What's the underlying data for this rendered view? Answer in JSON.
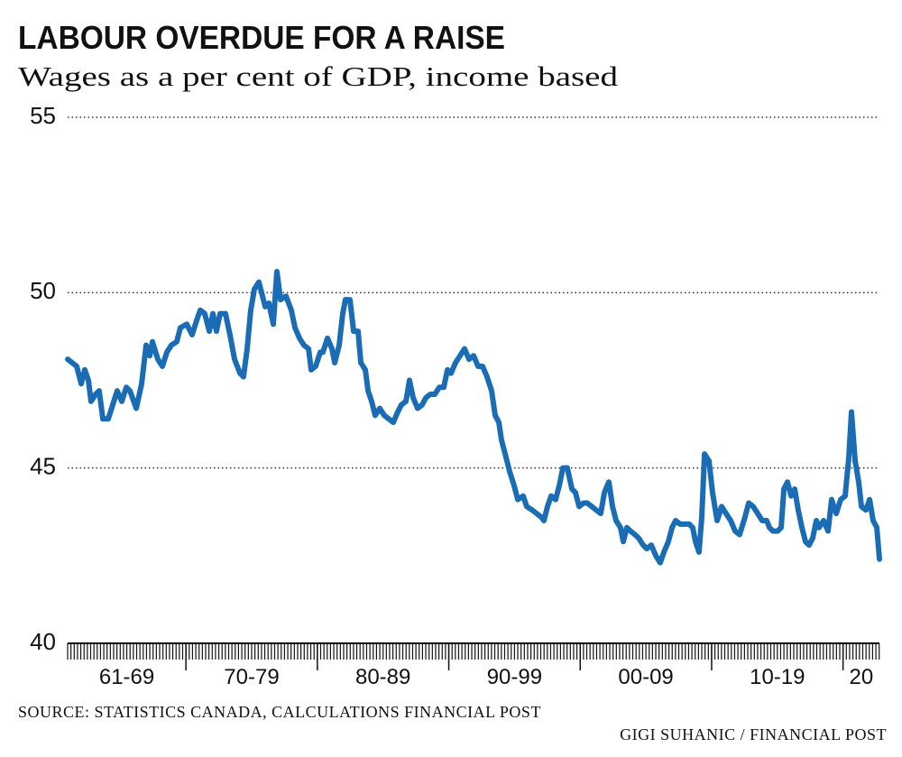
{
  "chart_data": {
    "type": "line",
    "title": "LABOUR OVERDUE FOR A RAISE",
    "subtitle": "Wages as a per cent of GDP, income based",
    "source": "SOURCE: STATISTICS CANADA, CALCULATIONS FINANCIAL POST",
    "credit": "GIGI SUHANIC / FINANCIAL POST",
    "ylim": [
      40,
      55
    ],
    "yticks": [
      40,
      45,
      50,
      55
    ],
    "grid": true,
    "xlim": [
      1961,
      2022.77
    ],
    "xticks": [
      1970,
      1980,
      1990,
      2000,
      2010,
      2020
    ],
    "minor_xtick_step": 0.25,
    "x_bands": [
      {
        "label": "61-69",
        "from": 1961,
        "to": 1970
      },
      {
        "label": "70-79",
        "from": 1970,
        "to": 1980
      },
      {
        "label": "80-89",
        "from": 1980,
        "to": 1990
      },
      {
        "label": "90-99",
        "from": 1990,
        "to": 2000
      },
      {
        "label": "00-09",
        "from": 2000,
        "to": 2010
      },
      {
        "label": "10-19",
        "from": 2010,
        "to": 2020
      },
      {
        "label": "20",
        "from": 2020,
        "to": 2022.77
      }
    ],
    "color": "#1a6db5",
    "x": [
      1961.0,
      1961.69,
      1962.03,
      1962.3,
      1962.58,
      1962.78,
      1963.13,
      1963.4,
      1963.68,
      1964.09,
      1964.43,
      1964.77,
      1965.12,
      1965.46,
      1965.74,
      1966.22,
      1966.63,
      1966.97,
      1967.25,
      1967.45,
      1967.86,
      1968.21,
      1968.55,
      1968.89,
      1969.3,
      1969.58,
      1970.06,
      1970.47,
      1970.81,
      1971.09,
      1971.43,
      1971.78,
      1972.05,
      1972.32,
      1972.6,
      1973.01,
      1973.35,
      1973.7,
      1974.11,
      1974.38,
      1974.66,
      1974.93,
      1975.21,
      1975.55,
      1975.76,
      1976.03,
      1976.31,
      1976.65,
      1976.92,
      1977.2,
      1977.61,
      1978.02,
      1978.3,
      1978.64,
      1978.98,
      1979.33,
      1979.53,
      1979.87,
      1980.22,
      1980.42,
      1980.77,
      1981.11,
      1981.32,
      1981.66,
      1981.93,
      1982.14,
      1982.48,
      1982.76,
      1983.1,
      1983.31,
      1983.65,
      1983.86,
      1984.13,
      1984.4,
      1984.75,
      1985.09,
      1985.43,
      1985.78,
      1986.12,
      1986.39,
      1986.74,
      1987.01,
      1987.29,
      1987.63,
      1987.97,
      1988.25,
      1988.59,
      1988.93,
      1989.28,
      1989.62,
      1989.9,
      1990.17,
      1990.51,
      1990.86,
      1991.2,
      1991.54,
      1991.89,
      1992.23,
      1992.57,
      1992.91,
      1993.26,
      1993.53,
      1993.81,
      1994.01,
      1994.29,
      1994.63,
      1994.97,
      1995.25,
      1995.66,
      1995.93,
      1996.35,
      1996.69,
      1997.03,
      1997.24,
      1997.51,
      1997.79,
      1998.13,
      1998.41,
      1998.68,
      1999.02,
      1999.37,
      1999.64,
      1999.92,
      2000.26,
      2000.53,
      2000.88,
      2001.22,
      2001.56,
      2001.84,
      2002.18,
      2002.46,
      2002.73,
      2003.07,
      2003.28,
      2003.55,
      2003.83,
      2004.17,
      2004.45,
      2004.79,
      2005.06,
      2005.41,
      2005.75,
      2006.09,
      2006.37,
      2006.71,
      2006.99,
      2007.26,
      2007.6,
      2008.01,
      2008.29,
      2008.56,
      2008.77,
      2009.04,
      2009.25,
      2009.46,
      2009.8,
      2010.07,
      2010.42,
      2010.76,
      2011.1,
      2011.45,
      2011.79,
      2012.13,
      2012.54,
      2012.82,
      2013.16,
      2013.51,
      2013.85,
      2014.19,
      2014.4,
      2014.67,
      2015.02,
      2015.29,
      2015.5,
      2015.77,
      2016.05,
      2016.32,
      2016.59,
      2016.87,
      2017.14,
      2017.42,
      2017.69,
      2017.97,
      2018.17,
      2018.52,
      2018.86,
      2019.13,
      2019.48,
      2019.82,
      2020.16,
      2020.44,
      2020.64,
      2020.92,
      2021.19,
      2021.4,
      2021.74,
      2022.02,
      2022.29,
      2022.57,
      2022.77
    ],
    "values": [
      48.1,
      47.9,
      47.4,
      47.8,
      47.5,
      46.9,
      47.1,
      47.2,
      46.4,
      46.4,
      46.8,
      47.2,
      46.9,
      47.3,
      47.2,
      46.7,
      47.4,
      48.5,
      48.2,
      48.6,
      48.1,
      47.9,
      48.3,
      48.5,
      48.6,
      49.0,
      49.1,
      48.8,
      49.2,
      49.5,
      49.4,
      48.9,
      49.4,
      48.9,
      49.4,
      49.4,
      48.8,
      48.1,
      47.7,
      47.6,
      48.4,
      49.5,
      50.1,
      50.3,
      50.0,
      49.6,
      49.7,
      49.1,
      50.6,
      49.8,
      49.9,
      49.5,
      49.0,
      48.7,
      48.5,
      48.4,
      47.8,
      47.9,
      48.3,
      48.3,
      48.7,
      48.4,
      48.0,
      48.5,
      49.4,
      49.8,
      49.8,
      48.9,
      48.9,
      48.0,
      47.8,
      47.2,
      46.9,
      46.5,
      46.7,
      46.5,
      46.4,
      46.3,
      46.6,
      46.8,
      46.9,
      47.5,
      47.0,
      46.7,
      46.8,
      47.0,
      47.1,
      47.1,
      47.3,
      47.3,
      47.8,
      47.7,
      48.0,
      48.2,
      48.4,
      48.1,
      48.2,
      47.9,
      47.9,
      47.6,
      47.2,
      46.5,
      46.3,
      45.8,
      45.4,
      44.9,
      44.5,
      44.1,
      44.2,
      43.9,
      43.8,
      43.7,
      43.6,
      43.5,
      43.9,
      44.2,
      44.1,
      44.5,
      45.0,
      45.0,
      44.4,
      44.3,
      43.9,
      44.0,
      44.0,
      43.9,
      43.8,
      43.7,
      44.3,
      44.6,
      43.9,
      43.5,
      43.3,
      42.9,
      43.3,
      43.2,
      43.1,
      43.0,
      42.8,
      42.7,
      42.8,
      42.5,
      42.3,
      42.6,
      42.9,
      43.3,
      43.5,
      43.4,
      43.4,
      43.4,
      43.3,
      42.9,
      42.6,
      43.6,
      45.4,
      45.2,
      44.3,
      43.5,
      43.9,
      43.7,
      43.5,
      43.2,
      43.1,
      43.6,
      44.0,
      43.9,
      43.7,
      43.5,
      43.5,
      43.3,
      43.2,
      43.2,
      43.3,
      44.4,
      44.6,
      44.2,
      44.4,
      43.8,
      43.3,
      42.9,
      42.8,
      43.0,
      43.5,
      43.3,
      43.5,
      43.2,
      44.1,
      43.7,
      44.1,
      44.2,
      45.3,
      46.6,
      45.2,
      44.6,
      43.9,
      43.8,
      44.1,
      43.5,
      43.3,
      42.4
    ]
  }
}
